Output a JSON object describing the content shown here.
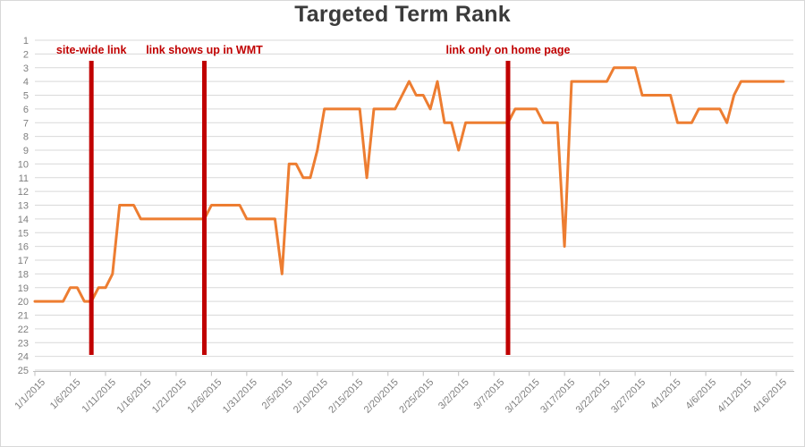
{
  "title": "Targeted Term Rank",
  "chart_data": {
    "type": "line",
    "title": "Targeted Term Rank",
    "xlabel": "",
    "ylabel": "",
    "y_axis": {
      "min": 1,
      "max": 25,
      "step": 1,
      "inverted": true,
      "meaning": "rank (1 = best)"
    },
    "y_tick_labels": [
      "1",
      "2",
      "3",
      "4",
      "5",
      "6",
      "7",
      "8",
      "9",
      "10",
      "11",
      "12",
      "13",
      "14",
      "15",
      "16",
      "17",
      "18",
      "19",
      "20",
      "21",
      "22",
      "23",
      "24",
      "25"
    ],
    "x_tick_labels": [
      "1/1/2015",
      "1/6/2015",
      "1/11/2015",
      "1/16/2015",
      "1/21/2015",
      "1/26/2015",
      "1/31/2015",
      "2/5/2015",
      "2/10/2015",
      "2/15/2015",
      "2/20/2015",
      "2/25/2015",
      "3/2/2015",
      "3/7/2015",
      "3/12/2015",
      "3/17/2015",
      "3/22/2015",
      "3/27/2015",
      "4/1/2015",
      "4/6/2015",
      "4/11/2015",
      "4/16/2015"
    ],
    "x_tick_every_n_points": 5,
    "grid": true,
    "legend": false,
    "series_name": "Targeted term rank",
    "x": [
      "1/1/2015",
      "1/2/2015",
      "1/3/2015",
      "1/4/2015",
      "1/5/2015",
      "1/6/2015",
      "1/7/2015",
      "1/8/2015",
      "1/9/2015",
      "1/10/2015",
      "1/11/2015",
      "1/12/2015",
      "1/13/2015",
      "1/14/2015",
      "1/15/2015",
      "1/16/2015",
      "1/17/2015",
      "1/18/2015",
      "1/19/2015",
      "1/20/2015",
      "1/21/2015",
      "1/22/2015",
      "1/23/2015",
      "1/24/2015",
      "1/25/2015",
      "1/26/2015",
      "1/27/2015",
      "1/28/2015",
      "1/29/2015",
      "1/30/2015",
      "1/31/2015",
      "2/1/2015",
      "2/2/2015",
      "2/3/2015",
      "2/4/2015",
      "2/5/2015",
      "2/6/2015",
      "2/7/2015",
      "2/8/2015",
      "2/9/2015",
      "2/10/2015",
      "2/11/2015",
      "2/12/2015",
      "2/13/2015",
      "2/14/2015",
      "2/15/2015",
      "2/16/2015",
      "2/17/2015",
      "2/18/2015",
      "2/19/2015",
      "2/20/2015",
      "2/21/2015",
      "2/22/2015",
      "2/23/2015",
      "2/24/2015",
      "2/25/2015",
      "2/26/2015",
      "2/27/2015",
      "2/28/2015",
      "3/1/2015",
      "3/2/2015",
      "3/3/2015",
      "3/4/2015",
      "3/5/2015",
      "3/6/2015",
      "3/7/2015",
      "3/8/2015",
      "3/9/2015",
      "3/10/2015",
      "3/11/2015",
      "3/12/2015",
      "3/13/2015",
      "3/14/2015",
      "3/15/2015",
      "3/16/2015",
      "3/17/2015",
      "3/18/2015",
      "3/19/2015",
      "3/20/2015",
      "3/21/2015",
      "3/22/2015",
      "3/23/2015",
      "3/24/2015",
      "3/25/2015",
      "3/26/2015",
      "3/27/2015",
      "3/28/2015",
      "3/29/2015",
      "3/30/2015",
      "3/31/2015",
      "4/1/2015",
      "4/2/2015",
      "4/3/2015",
      "4/4/2015",
      "4/5/2015",
      "4/6/2015",
      "4/7/2015",
      "4/8/2015",
      "4/9/2015",
      "4/10/2015",
      "4/11/2015",
      "4/12/2015",
      "4/13/2015",
      "4/14/2015",
      "4/15/2015",
      "4/16/2015",
      "4/17/2015"
    ],
    "values": [
      20,
      20,
      20,
      20,
      20,
      19,
      19,
      20,
      20,
      19,
      19,
      18,
      13,
      13,
      13,
      14,
      14,
      14,
      14,
      14,
      14,
      14,
      14,
      14,
      14,
      13,
      13,
      13,
      13,
      13,
      14,
      14,
      14,
      14,
      14,
      18,
      10,
      10,
      11,
      11,
      9,
      6,
      6,
      6,
      6,
      6,
      6,
      11,
      6,
      6,
      6,
      6,
      5,
      4,
      5,
      5,
      6,
      4,
      7,
      7,
      9,
      7,
      7,
      7,
      7,
      7,
      7,
      7,
      6,
      6,
      6,
      6,
      7,
      7,
      7,
      16,
      4,
      4,
      4,
      4,
      4,
      4,
      3,
      3,
      3,
      3,
      5,
      5,
      5,
      5,
      5,
      7,
      7,
      7,
      6,
      6,
      6,
      6,
      7,
      5,
      4,
      4,
      4,
      4,
      4,
      4,
      4
    ],
    "annotations": [
      {
        "label": "site-wide link",
        "date": "1/9/2015"
      },
      {
        "label": "link shows up in WMT",
        "date": "1/25/2015"
      },
      {
        "label": "link only on home page",
        "date": "3/9/2015"
      }
    ],
    "colors": {
      "series": "#ED7D31",
      "annotation": "#C00000",
      "gridline": "#D9D9D9",
      "axis_line": "#BFBFBF",
      "tick_label": "#7F7F7F",
      "title": "#3B3B3B"
    }
  }
}
